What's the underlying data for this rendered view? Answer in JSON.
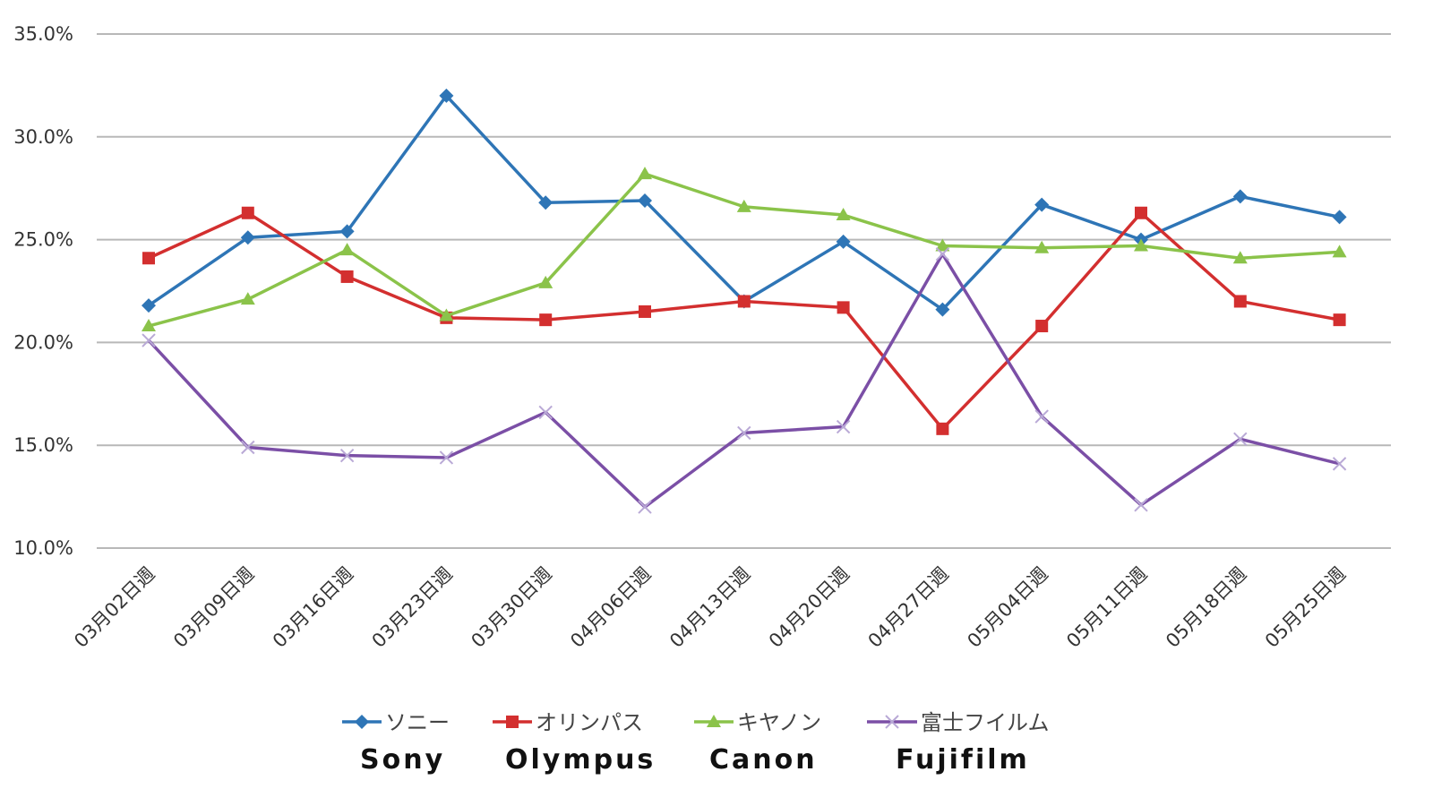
{
  "chart_data": {
    "type": "line",
    "categories": [
      "03月02日週",
      "03月09日週",
      "03月16日週",
      "03月23日週",
      "03月30日週",
      "04月06日週",
      "04月13日週",
      "04月20日週",
      "04月27日週",
      "05月04日週",
      "05月11日週",
      "05月18日週",
      "05月25日週"
    ],
    "ylim": [
      10,
      35
    ],
    "yticks": [
      "10.0%",
      "15.0%",
      "20.0%",
      "25.0%",
      "30.0%",
      "35.0%"
    ],
    "grid": true,
    "legend_position": "bottom",
    "series": [
      {
        "name": "ソニー",
        "name_en": "Sony",
        "color": "#2e75b6",
        "marker": "diamond",
        "values": [
          21.8,
          25.1,
          25.4,
          32.0,
          26.8,
          26.9,
          22.0,
          24.9,
          21.6,
          26.7,
          25.0,
          27.1,
          26.1
        ]
      },
      {
        "name": "オリンパス",
        "name_en": "Olympus",
        "color": "#d32f2f",
        "marker": "square",
        "values": [
          24.1,
          26.3,
          23.2,
          21.2,
          21.1,
          21.5,
          22.0,
          21.7,
          15.8,
          20.8,
          26.3,
          22.0,
          21.1
        ]
      },
      {
        "name": "キヤノン",
        "name_en": "Canon",
        "color": "#8bc34a",
        "marker": "triangle",
        "values": [
          20.8,
          22.1,
          24.5,
          21.3,
          22.9,
          28.2,
          26.6,
          26.2,
          24.7,
          24.6,
          24.7,
          24.1,
          24.4
        ]
      },
      {
        "name": "富士フイルム",
        "name_en": "Fujifilm",
        "color": "#7b4fa6",
        "marker": "x",
        "values": [
          20.1,
          14.9,
          14.5,
          14.4,
          16.6,
          12.0,
          15.6,
          15.9,
          24.3,
          16.4,
          12.1,
          15.3,
          14.1
        ]
      }
    ]
  }
}
